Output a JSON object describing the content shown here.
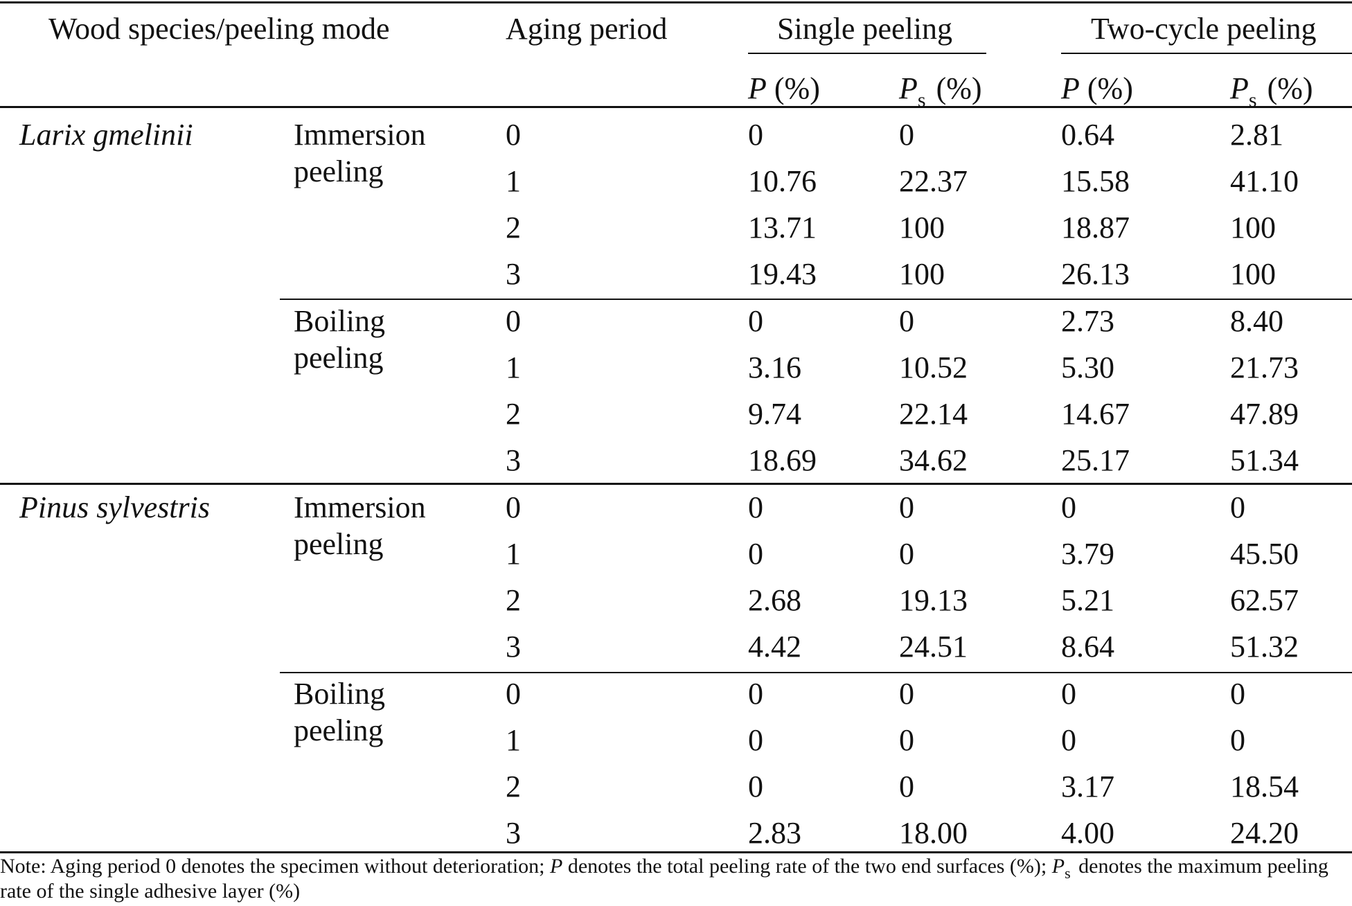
{
  "header": {
    "species_mode": "Wood species/peeling mode",
    "aging": "Aging period",
    "single": "Single peeling",
    "two_cycle": "Two-cycle peeling",
    "p_symbol": "P",
    "p_unit": " (%)",
    "ps_symbol": "P",
    "ps_sub": "s",
    "ps_unit": " (%)"
  },
  "groups": [
    {
      "species": "Larix gmelinii",
      "modes": [
        {
          "line1": "Immersion",
          "line2": "peeling",
          "rows": [
            {
              "aging": "0",
              "single_p": "0",
              "single_ps": "0",
              "two_p": "0.64",
              "two_ps": "2.81"
            },
            {
              "aging": "1",
              "single_p": "10.76",
              "single_ps": "22.37",
              "two_p": "15.58",
              "two_ps": "41.10"
            },
            {
              "aging": "2",
              "single_p": "13.71",
              "single_ps": "100",
              "two_p": "18.87",
              "two_ps": "100"
            },
            {
              "aging": "3",
              "single_p": "19.43",
              "single_ps": "100",
              "two_p": "26.13",
              "two_ps": "100"
            }
          ]
        },
        {
          "line1": "Boiling",
          "line2": "peeling",
          "rows": [
            {
              "aging": "0",
              "single_p": "0",
              "single_ps": "0",
              "two_p": "2.73",
              "two_ps": "8.40"
            },
            {
              "aging": "1",
              "single_p": "3.16",
              "single_ps": "10.52",
              "two_p": "5.30",
              "two_ps": "21.73"
            },
            {
              "aging": "2",
              "single_p": "9.74",
              "single_ps": "22.14",
              "two_p": "14.67",
              "two_ps": "47.89"
            },
            {
              "aging": "3",
              "single_p": "18.69",
              "single_ps": "34.62",
              "two_p": "25.17",
              "two_ps": "51.34"
            }
          ]
        }
      ]
    },
    {
      "species": "Pinus sylvestris",
      "modes": [
        {
          "line1": "Immersion",
          "line2": "peeling",
          "rows": [
            {
              "aging": "0",
              "single_p": "0",
              "single_ps": "0",
              "two_p": "0",
              "two_ps": "0"
            },
            {
              "aging": "1",
              "single_p": "0",
              "single_ps": "0",
              "two_p": "3.79",
              "two_ps": "45.50"
            },
            {
              "aging": "2",
              "single_p": "2.68",
              "single_ps": "19.13",
              "two_p": "5.21",
              "two_ps": "62.57"
            },
            {
              "aging": "3",
              "single_p": "4.42",
              "single_ps": "24.51",
              "two_p": "8.64",
              "two_ps": "51.32"
            }
          ]
        },
        {
          "line1": "Boiling",
          "line2": "peeling",
          "rows": [
            {
              "aging": "0",
              "single_p": "0",
              "single_ps": "0",
              "two_p": "0",
              "two_ps": "0"
            },
            {
              "aging": "1",
              "single_p": "0",
              "single_ps": "0",
              "two_p": "0",
              "two_ps": "0"
            },
            {
              "aging": "2",
              "single_p": "0",
              "single_ps": "0",
              "two_p": "3.17",
              "two_ps": "18.54"
            },
            {
              "aging": "3",
              "single_p": "2.83",
              "single_ps": "18.00",
              "two_p": "4.00",
              "two_ps": "24.20"
            }
          ]
        }
      ]
    }
  ],
  "note": {
    "part1": "Note: Aging period 0 denotes the specimen without deterioration; ",
    "p_symbol": "P",
    "part2": " denotes the total peeling rate of the two end surfaces (%); ",
    "ps_symbol": "P",
    "ps_sub": "s",
    "part3": " denotes the maximum peeling rate of the single adhesive layer (%)"
  }
}
